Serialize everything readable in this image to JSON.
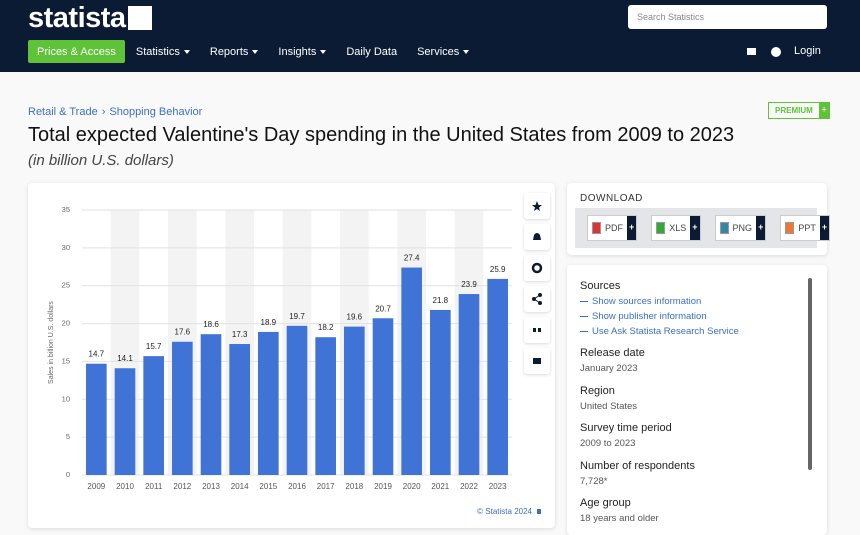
{
  "header": {
    "logo": "statista",
    "search_placeholder": "Search Statistics",
    "nav": [
      {
        "label": "Prices & Access",
        "dropdown": false
      },
      {
        "label": "Statistics",
        "dropdown": true
      },
      {
        "label": "Reports",
        "dropdown": true
      },
      {
        "label": "Insights",
        "dropdown": true
      },
      {
        "label": "Daily Data",
        "dropdown": false
      },
      {
        "label": "Services",
        "dropdown": true
      }
    ],
    "login": "Login"
  },
  "breadcrumb": {
    "items": [
      "Retail & Trade",
      "Shopping Behavior"
    ],
    "separator": "›"
  },
  "badge": {
    "label": "PREMIUM",
    "plus": "+"
  },
  "title": "Total expected Valentine's Day spending in the United States from 2009 to 2023",
  "subtitle": "(in billion U.S. dollars)",
  "chart_data": {
    "type": "bar",
    "y_axis_label": "Sales in billion U.S. dollars",
    "categories": [
      "2009",
      "2010",
      "2011",
      "2012",
      "2013",
      "2014",
      "2015",
      "2016",
      "2017",
      "2018",
      "2019",
      "2020",
      "2021",
      "2022",
      "2023"
    ],
    "values": [
      14.7,
      14.1,
      15.7,
      17.6,
      18.6,
      17.3,
      18.9,
      19.7,
      18.2,
      19.6,
      20.7,
      27.4,
      21.8,
      23.9,
      25.9
    ],
    "color": "#3f74d6",
    "ylim": [
      0,
      35
    ],
    "yticks": [
      0,
      5,
      10,
      15,
      20,
      25,
      30,
      35
    ],
    "grid": true,
    "credit": "© Statista 2024"
  },
  "download": {
    "heading": "DOWNLOAD",
    "formats": [
      "PDF",
      "XLS",
      "PNG",
      "PPT"
    ],
    "plus": "+"
  },
  "details": {
    "sources": {
      "heading": "Sources",
      "links": [
        "Show sources information",
        "Show publisher information",
        "Use Ask Statista Research Service"
      ]
    },
    "fields": [
      {
        "label": "Release date",
        "value": "January 2023"
      },
      {
        "label": "Region",
        "value": "United States"
      },
      {
        "label": "Survey time period",
        "value": "2009 to 2023"
      },
      {
        "label": "Number of respondents",
        "value": "7,728*"
      },
      {
        "label": "Age group",
        "value": "18 years and older"
      }
    ]
  }
}
